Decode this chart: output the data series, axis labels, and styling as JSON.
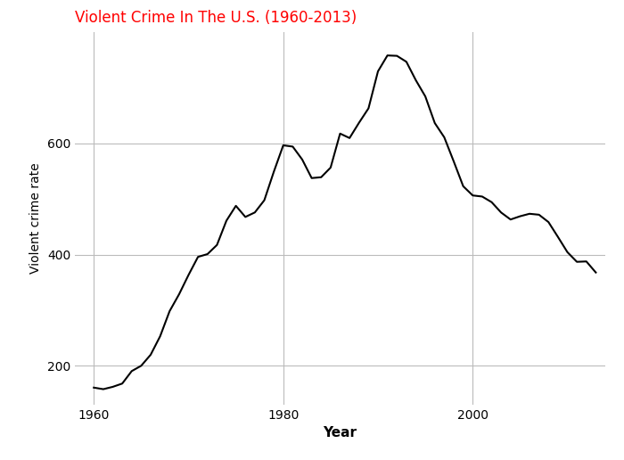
{
  "title": "Violent Crime In The U.S. (1960-2013)",
  "title_color": "red",
  "title_fontsize": 12,
  "xlabel": "Year",
  "ylabel": "Violent crime rate",
  "xlabel_fontsize": 11,
  "xlabel_fontweight": "bold",
  "ylabel_fontsize": 10,
  "line_color": "black",
  "line_width": 1.5,
  "background_color": "white",
  "grid_color": "#bbbbbb",
  "xlim": [
    1958,
    2014
  ],
  "ylim": [
    130,
    800
  ],
  "xticks": [
    1960,
    1980,
    2000
  ],
  "yticks": [
    200,
    400,
    600
  ],
  "years": [
    1960,
    1961,
    1962,
    1963,
    1964,
    1965,
    1966,
    1967,
    1968,
    1969,
    1970,
    1971,
    1972,
    1973,
    1974,
    1975,
    1976,
    1977,
    1978,
    1979,
    1980,
    1981,
    1982,
    1983,
    1984,
    1985,
    1986,
    1987,
    1988,
    1989,
    1990,
    1991,
    1992,
    1993,
    1994,
    1995,
    1996,
    1997,
    1998,
    1999,
    2000,
    2001,
    2002,
    2003,
    2004,
    2005,
    2006,
    2007,
    2008,
    2009,
    2010,
    2011,
    2012,
    2013
  ],
  "rates": [
    160.9,
    158.1,
    162.3,
    168.2,
    190.6,
    200.2,
    220.0,
    253.2,
    298.4,
    328.7,
    363.5,
    396.0,
    401.0,
    417.4,
    461.1,
    487.8,
    467.8,
    475.9,
    497.8,
    548.9,
    596.6,
    594.3,
    571.1,
    537.7,
    539.2,
    556.6,
    617.7,
    609.7,
    637.2,
    663.1,
    729.6,
    758.2,
    757.5,
    746.8,
    713.6,
    684.5,
    636.6,
    611.0,
    567.6,
    523.0,
    506.5,
    504.5,
    494.4,
    475.8,
    463.2,
    469.0,
    473.5,
    471.8,
    458.6,
    431.9,
    404.5,
    387.1,
    387.8,
    367.9
  ]
}
